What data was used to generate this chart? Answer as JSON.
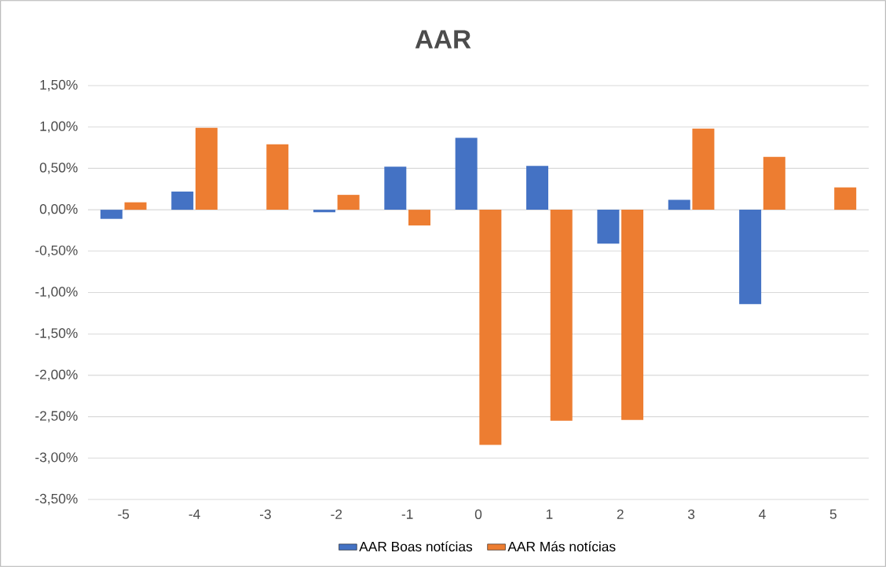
{
  "chart_data": {
    "type": "bar",
    "title": "AAR",
    "categories": [
      "-5",
      "-4",
      "-3",
      "-2",
      "-1",
      "0",
      "1",
      "2",
      "3",
      "4",
      "5"
    ],
    "series": [
      {
        "name": "AAR Boas notícias",
        "color": "#4472c4",
        "values": [
          -0.11,
          0.22,
          0,
          -0.03,
          0.52,
          0.87,
          0.53,
          -0.41,
          0.12,
          -1.14,
          0
        ]
      },
      {
        "name": "AAR Más notícias",
        "color": "#ed7d31",
        "values": [
          0.09,
          0.99,
          0.79,
          0.18,
          -0.19,
          -2.84,
          -2.55,
          -2.54,
          0.98,
          0.64,
          0.27
        ]
      }
    ],
    "ylim": [
      -3.5,
      1.5
    ],
    "yticks": [
      {
        "value": -3.5,
        "label": "-3,50%"
      },
      {
        "value": -3,
        "label": "-3,00%"
      },
      {
        "value": -2.5,
        "label": "-2,50%"
      },
      {
        "value": -2,
        "label": "-2,00%"
      },
      {
        "value": -1.5,
        "label": "-1,50%"
      },
      {
        "value": -1,
        "label": "-1,00%"
      },
      {
        "value": -0.5,
        "label": "-0,50%"
      },
      {
        "value": 0,
        "label": "0,00%"
      },
      {
        "value": 0.5,
        "label": "0,50%"
      },
      {
        "value": 1,
        "label": "1,00%"
      },
      {
        "value": 1.5,
        "label": "1,50%"
      }
    ],
    "grid": "y",
    "legend": "bottom"
  }
}
